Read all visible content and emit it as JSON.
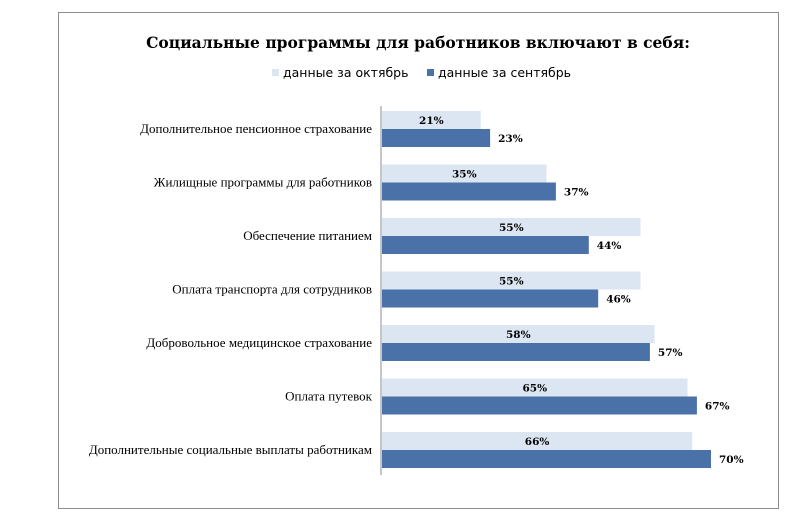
{
  "chart_data": {
    "type": "bar",
    "orientation": "horizontal",
    "title": "Социальные программы для работников включают в себя:",
    "categories": [
      "Дополнительное пенсионное страхование",
      "Жилищные программы для работников",
      "Обеспечение питанием",
      "Оплата транспорта для сотрудников",
      "Добровольное медицинское страхование",
      "Оплата путевок",
      "Дополнительные социальные выплаты работникам"
    ],
    "series": [
      {
        "name": "данные за октябрь",
        "color": "#dce6f2",
        "values": [
          21,
          35,
          55,
          55,
          58,
          65,
          66
        ]
      },
      {
        "name": "данные за сентябрь",
        "color": "#4a72a8",
        "values": [
          23,
          37,
          44,
          46,
          57,
          67,
          70
        ]
      }
    ],
    "value_suffix": "%",
    "xlim": [
      0,
      100
    ],
    "grid": false,
    "legend_position": "top"
  }
}
